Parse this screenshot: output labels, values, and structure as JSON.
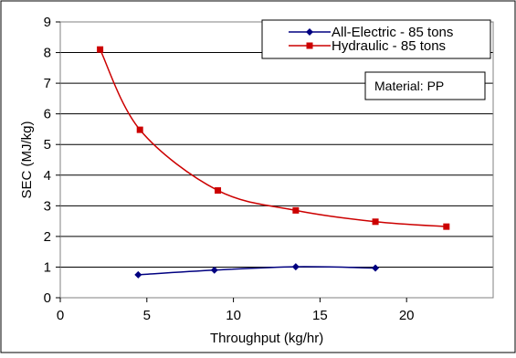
{
  "chart_data": {
    "type": "line",
    "title": "",
    "xlabel": "Throughput (kg/hr)",
    "ylabel": "SEC (MJ/kg)",
    "xlim": [
      0,
      25
    ],
    "ylim": [
      0,
      9
    ],
    "xticks": [
      0,
      5,
      10,
      15,
      20
    ],
    "yticks": [
      0,
      1,
      2,
      3,
      4,
      5,
      6,
      7,
      8,
      9
    ],
    "xtick_labels": [
      "0",
      "5",
      "10",
      "15",
      "20"
    ],
    "ytick_labels": [
      "0",
      "1",
      "2",
      "3",
      "4",
      "5",
      "6",
      "7",
      "8",
      "9"
    ],
    "grid": "horizontal",
    "legend_position": "top-right",
    "annotation": "Material: PP",
    "series": [
      {
        "name": "All-Electric - 85 tons",
        "color": "#000080",
        "marker": "diamond",
        "x": [
          4.5,
          8.9,
          13.6,
          18.2
        ],
        "y": [
          0.75,
          0.9,
          1.01,
          0.97
        ]
      },
      {
        "name": "Hydraulic - 85 tons",
        "color": "#cc0000",
        "marker": "square",
        "x": [
          2.3,
          4.6,
          9.1,
          13.6,
          18.2,
          22.3
        ],
        "y": [
          8.1,
          5.48,
          3.5,
          2.85,
          2.48,
          2.32
        ]
      }
    ]
  }
}
